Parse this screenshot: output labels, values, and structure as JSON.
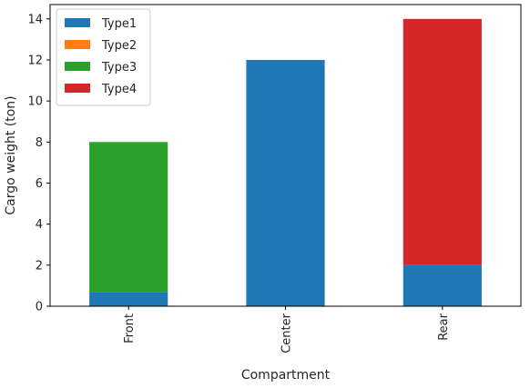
{
  "colors": {
    "type1": "#1f77b4",
    "type2": "#ff7f0e",
    "type3": "#2ca02c",
    "type4": "#d62728",
    "axis": "#000000",
    "legend_border": "#cccccc"
  },
  "chart_data": {
    "type": "bar",
    "stacked": true,
    "title": "",
    "xlabel": "Compartment",
    "ylabel": "Cargo weight (ton)",
    "categories": [
      "Front",
      "Center",
      "Rear"
    ],
    "ylim": [
      0,
      14.7
    ],
    "yticks": [
      0,
      2,
      4,
      6,
      8,
      10,
      12,
      14
    ],
    "grid": false,
    "legend_position": "top-left",
    "series": [
      {
        "name": "Type1",
        "values": [
          0.7,
          12,
          2
        ],
        "color": "#1f77b4"
      },
      {
        "name": "Type2",
        "values": [
          0,
          0,
          0
        ],
        "color": "#ff7f0e"
      },
      {
        "name": "Type3",
        "values": [
          7.3,
          0,
          0
        ],
        "color": "#2ca02c"
      },
      {
        "name": "Type4",
        "values": [
          0,
          0,
          12
        ],
        "color": "#d62728"
      }
    ]
  }
}
